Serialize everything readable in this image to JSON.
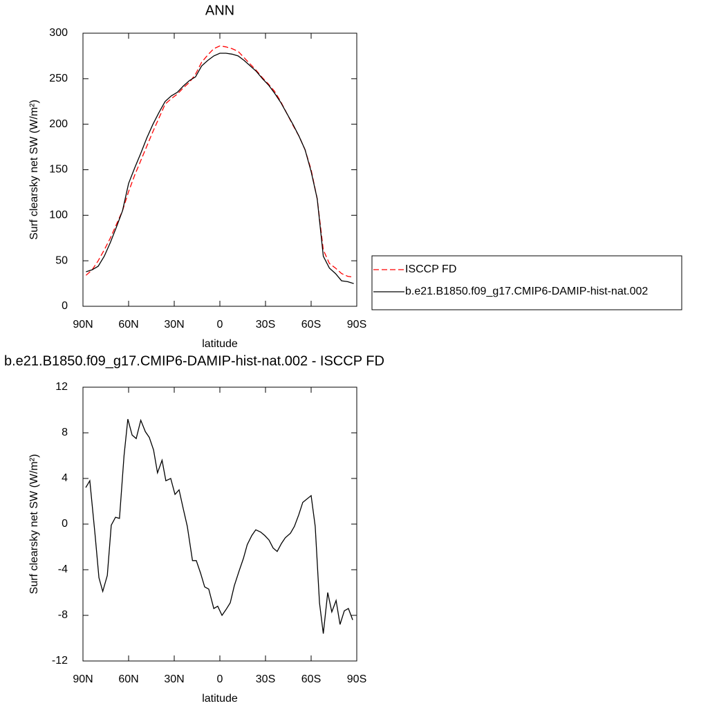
{
  "chart_data": [
    {
      "type": "line",
      "title": "ANN",
      "x_label": "latitude",
      "y_label": "Surf clearsky net SW (W/m²)",
      "xlim": [
        90,
        -90
      ],
      "ylim": [
        0,
        300
      ],
      "xticks": [
        {
          "value": 90,
          "label": "90N"
        },
        {
          "value": 60,
          "label": "60N"
        },
        {
          "value": 30,
          "label": "30N"
        },
        0,
        {
          "value": -30,
          "label": "30S"
        },
        {
          "value": -60,
          "label": "60S"
        },
        {
          "value": -90,
          "label": "90S"
        }
      ],
      "yticks": [
        0,
        50,
        100,
        150,
        200,
        250,
        300
      ],
      "legend": "right",
      "x": [
        88,
        84,
        80,
        76,
        72,
        68,
        64,
        60,
        56,
        52,
        48,
        44,
        40,
        36,
        32,
        28,
        24,
        20,
        16,
        12,
        8,
        4,
        0,
        -4,
        -8,
        -12,
        -16,
        -20,
        -24,
        -28,
        -32,
        -36,
        -40,
        -44,
        -48,
        -52,
        -56,
        -60,
        -64,
        -68,
        -72,
        -76,
        -80,
        -84,
        -88
      ],
      "series": [
        {
          "name": "ISCCP FD",
          "color": "#ff0000",
          "dash": "dashed",
          "values": [
            34,
            40,
            50,
            62,
            75,
            90,
            105,
            126,
            144,
            160,
            176,
            192,
            207,
            222,
            228,
            233,
            240,
            246,
            255,
            268,
            276,
            283,
            286,
            285,
            283,
            280,
            273,
            266,
            259,
            251,
            244,
            236,
            225,
            212,
            199,
            187,
            172,
            150,
            118,
            62,
            47,
            42,
            36,
            33,
            32
          ]
        },
        {
          "name": "b.e21.B1850.f09_g17.CMIP6-DAMIP-hist-nat.002",
          "color": "#000000",
          "dash": "solid",
          "values": [
            38,
            40,
            44,
            55,
            70,
            87,
            105,
            135,
            152,
            168,
            185,
            200,
            213,
            225,
            231,
            235,
            242,
            248,
            252,
            264,
            270,
            275,
            278,
            278,
            277,
            275,
            270,
            264,
            258,
            250,
            243,
            234,
            224,
            212,
            200,
            187,
            172,
            148,
            118,
            55,
            42,
            36,
            28,
            27,
            25
          ]
        }
      ]
    },
    {
      "type": "line",
      "title": "b.e21.B1850.f09_g17.CMIP6-DAMIP-hist-nat.002 - ISCCP FD",
      "x_label": "latitude",
      "y_label": "Surf clearsky net SW (W/m²)",
      "xlim": [
        90,
        -90
      ],
      "ylim": [
        -12,
        12
      ],
      "xticks": [
        {
          "value": 90,
          "label": "90N"
        },
        {
          "value": 60,
          "label": "60N"
        },
        {
          "value": 30,
          "label": "30N"
        },
        0,
        {
          "value": -30,
          "label": "30S"
        },
        {
          "value": -60,
          "label": "60S"
        },
        {
          "value": -90,
          "label": "90S"
        }
      ],
      "yticks": [
        -12,
        -8,
        -4,
        0,
        4,
        8,
        12
      ],
      "x": [
        88.2,
        85.5,
        82,
        79.5,
        77,
        74,
        71.4,
        68.6,
        66,
        63,
        60.5,
        57.7,
        55,
        52,
        49,
        46.4,
        43.6,
        41,
        38,
        35.5,
        32.3,
        29.5,
        26.8,
        24,
        21.4,
        18,
        15.5,
        12.7,
        10,
        7.3,
        4,
        1.4,
        -1.4,
        -4,
        -6.8,
        -9.5,
        -12.7,
        -15.5,
        -18,
        -21,
        -23.6,
        -26.8,
        -29.5,
        -32.3,
        -35,
        -37.7,
        -40.5,
        -43,
        -46.4,
        -49,
        -51.8,
        -54.5,
        -60,
        -62.7,
        -65.5,
        -68,
        -70.9,
        -73.6,
        -76.4,
        -79,
        -81.8,
        -84.5,
        -87.3
      ],
      "series": [
        {
          "color": "#000000",
          "dash": "solid",
          "values": [
            3.2,
            3.8,
            -1,
            -4.7,
            -5.9,
            -4.5,
            -0.1,
            0.6,
            0.5,
            6,
            9.2,
            7.8,
            7.5,
            9.1,
            8.1,
            7.6,
            6.5,
            4.5,
            5.6,
            3.8,
            4,
            2.6,
            3,
            1.3,
            -0.2,
            -3.2,
            -3.2,
            -4.3,
            -5.5,
            -5.7,
            -7.4,
            -7.2,
            -8,
            -7.5,
            -6.9,
            -5.4,
            -4.1,
            -3,
            -1.8,
            -1,
            -0.5,
            -0.7,
            -1,
            -1.4,
            -2.1,
            -2.4,
            -1.7,
            -1.2,
            -0.8,
            -0.2,
            0.8,
            1.9,
            2.5,
            -0.2,
            -6.9,
            -9.6,
            -6,
            -7.7,
            -6.7,
            -8.8,
            -7.6,
            -7.4,
            -8.4
          ]
        }
      ]
    }
  ]
}
